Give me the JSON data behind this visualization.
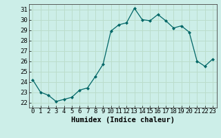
{
  "x": [
    0,
    1,
    2,
    3,
    4,
    5,
    6,
    7,
    8,
    9,
    10,
    11,
    12,
    13,
    14,
    15,
    16,
    17,
    18,
    19,
    20,
    21,
    22,
    23
  ],
  "y": [
    24.2,
    23.0,
    22.7,
    22.1,
    22.3,
    22.5,
    23.2,
    23.4,
    24.5,
    25.7,
    28.9,
    29.5,
    29.7,
    31.1,
    30.0,
    29.9,
    30.5,
    29.9,
    29.2,
    29.4,
    28.8,
    26.0,
    25.5,
    26.2
  ],
  "xlabel": "Humidex (Indice chaleur)",
  "ylim": [
    21.5,
    31.5
  ],
  "xlim": [
    -0.5,
    23.5
  ],
  "yticks": [
    22,
    23,
    24,
    25,
    26,
    27,
    28,
    29,
    30,
    31
  ],
  "xticks": [
    0,
    1,
    2,
    3,
    4,
    5,
    6,
    7,
    8,
    9,
    10,
    11,
    12,
    13,
    14,
    15,
    16,
    17,
    18,
    19,
    20,
    21,
    22,
    23
  ],
  "line_color": "#006666",
  "marker_color": "#006666",
  "bg_color": "#cceee8",
  "grid_color": "#bbddcc",
  "xlabel_fontsize": 7.5,
  "tick_fontsize": 6.5
}
